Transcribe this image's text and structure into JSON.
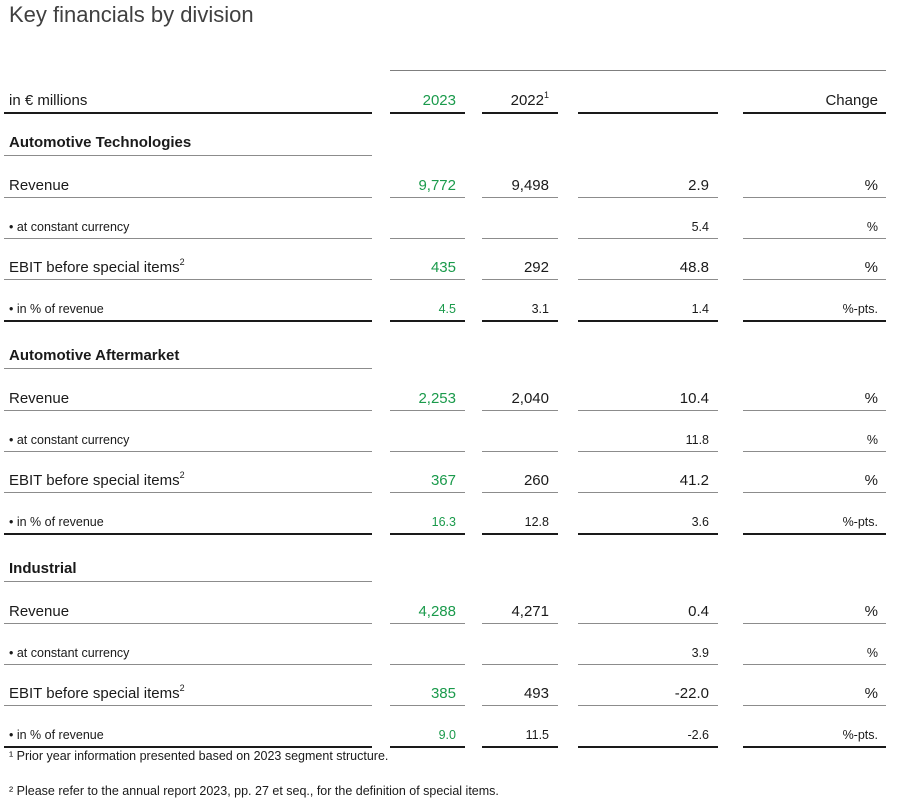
{
  "title": "Key financials by division",
  "header": {
    "unit_label": "in € millions",
    "col_current": "2023",
    "col_prior": "2022",
    "col_prior_sup": "1",
    "col_change": "Change"
  },
  "sections": [
    {
      "name": "Automotive Technologies",
      "rows": [
        {
          "label": "Revenue",
          "sup": "",
          "current": "9,772",
          "prior": "9,498",
          "change": "2.9",
          "unit": "%"
        },
        {
          "label": "• at constant currency",
          "sup": "",
          "current": "",
          "prior": "",
          "change": "5.4",
          "unit": "%"
        },
        {
          "label": "EBIT before special items",
          "sup": "2",
          "current": "435",
          "prior": "292",
          "change": "48.8",
          "unit": "%"
        },
        {
          "label": "• in % of revenue",
          "sup": "",
          "current": "4.5",
          "prior": "3.1",
          "change": "1.4",
          "unit": "%-pts."
        }
      ]
    },
    {
      "name": "Automotive Aftermarket",
      "rows": [
        {
          "label": "Revenue",
          "sup": "",
          "current": "2,253",
          "prior": "2,040",
          "change": "10.4",
          "unit": "%"
        },
        {
          "label": "• at constant currency",
          "sup": "",
          "current": "",
          "prior": "",
          "change": "11.8",
          "unit": "%"
        },
        {
          "label": "EBIT before special items",
          "sup": "2",
          "current": "367",
          "prior": "260",
          "change": "41.2",
          "unit": "%"
        },
        {
          "label": "• in % of revenue",
          "sup": "",
          "current": "16.3",
          "prior": "12.8",
          "change": "3.6",
          "unit": "%-pts."
        }
      ]
    },
    {
      "name": "Industrial",
      "rows": [
        {
          "label": "Revenue",
          "sup": "",
          "current": "4,288",
          "prior": "4,271",
          "change": "0.4",
          "unit": "%"
        },
        {
          "label": "• at constant currency",
          "sup": "",
          "current": "",
          "prior": "",
          "change": "3.9",
          "unit": "%"
        },
        {
          "label": "EBIT before special items",
          "sup": "2",
          "current": "385",
          "prior": "493",
          "change": "-22.0",
          "unit": "%"
        },
        {
          "label": "• in % of revenue",
          "sup": "",
          "current": "9.0",
          "prior": "11.5",
          "change": "-2.6",
          "unit": "%-pts."
        }
      ]
    }
  ],
  "footnotes": [
    "¹ Prior year information presented based on 2023 segment structure.",
    "² Please refer to the annual report 2023, pp. 27 et seq., for the definition of special items."
  ],
  "colors": {
    "accent_green": "#1a9a4b"
  }
}
